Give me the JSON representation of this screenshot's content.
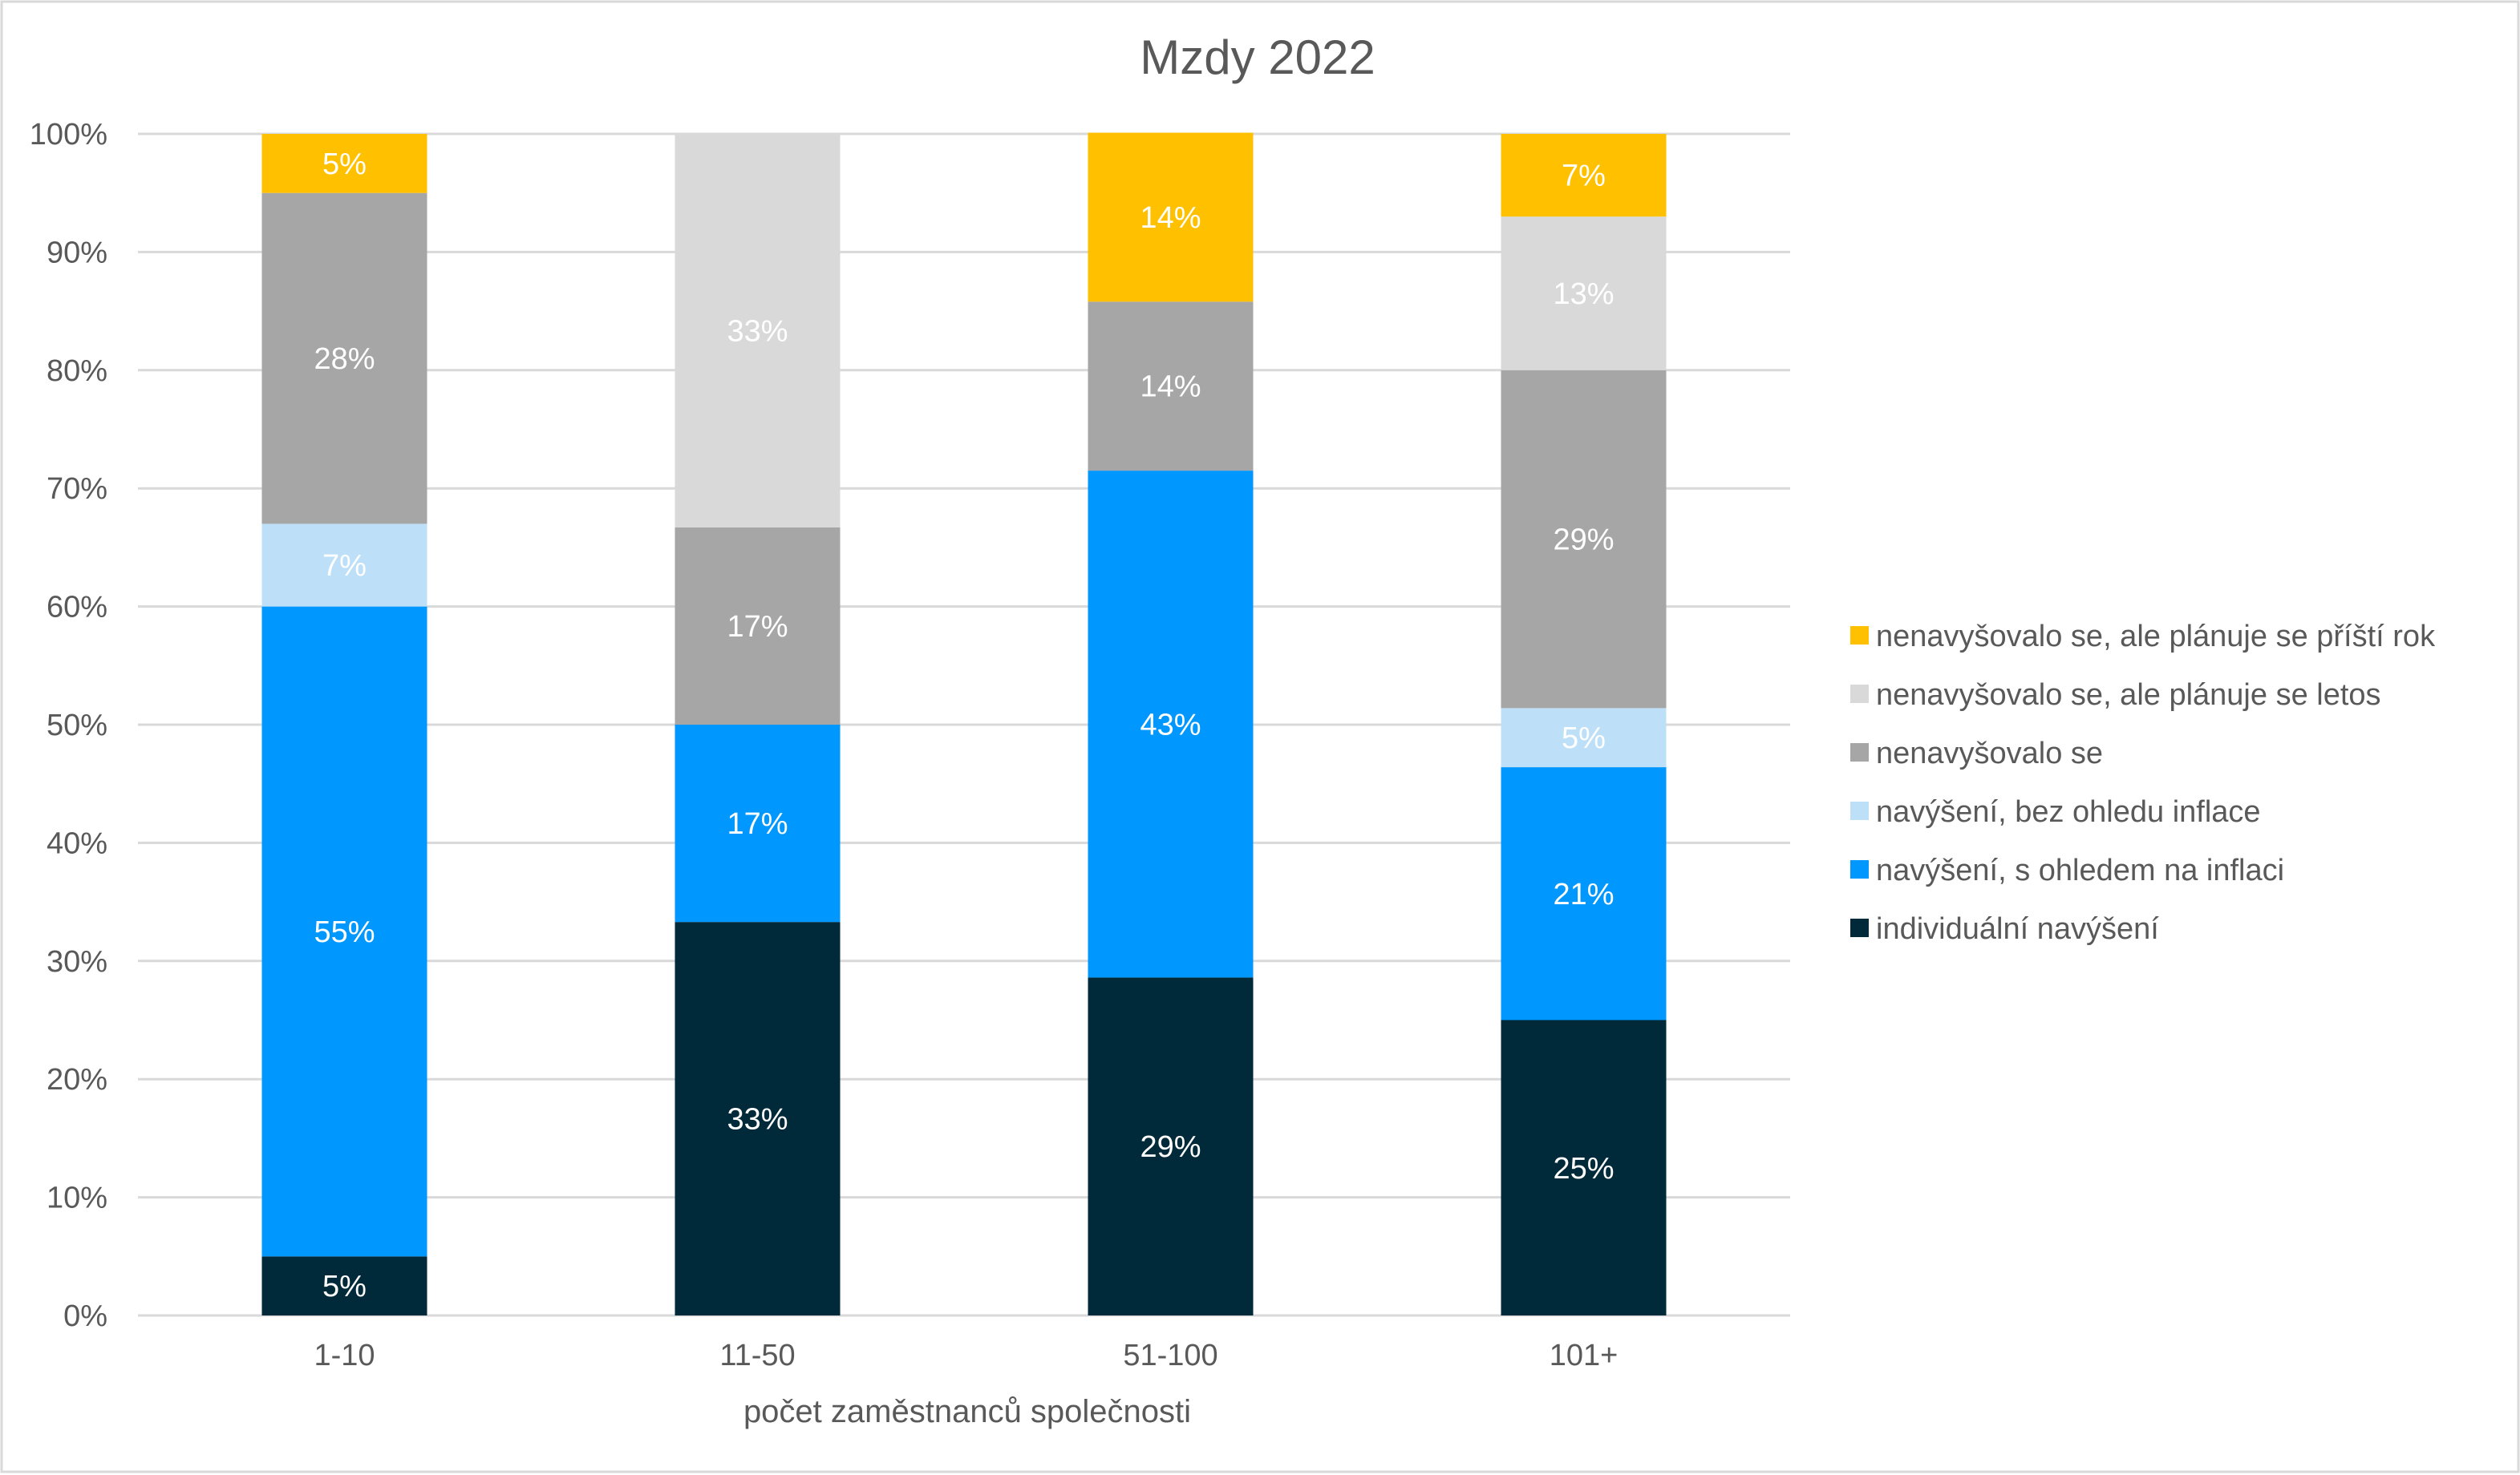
{
  "chart_data": {
    "type": "bar",
    "stacked": true,
    "percent_stacked": true,
    "title": "Mzdy 2022",
    "xlabel": "počet zaměstnanců společnosti",
    "ylabel": "",
    "categories": [
      "1-10",
      "11-50",
      "51-100",
      "101+"
    ],
    "ylim": [
      0,
      100
    ],
    "yticks": [
      "0%",
      "10%",
      "20%",
      "30%",
      "40%",
      "50%",
      "60%",
      "70%",
      "80%",
      "90%",
      "100%"
    ],
    "grid": true,
    "legend_position": "right",
    "series": [
      {
        "name": "individuální navýšení",
        "color": "#002a3a",
        "values": [
          5,
          33.3,
          28.6,
          25
        ],
        "labels": [
          "5%",
          "33%",
          "29%",
          "25%"
        ]
      },
      {
        "name": "navýšení, s ohledem na inflaci",
        "color": "#0097ff",
        "values": [
          55,
          16.7,
          42.9,
          21.4
        ],
        "labels": [
          "55%",
          "17%",
          "43%",
          "21%"
        ]
      },
      {
        "name": "navýšení, bez ohledu inflace",
        "color": "#bde0f8",
        "values": [
          7,
          0,
          0,
          5
        ],
        "labels": [
          "7%",
          "",
          "",
          "5%"
        ]
      },
      {
        "name": "nenavyšovalo se",
        "color": "#a6a6a6",
        "values": [
          28,
          16.7,
          14.3,
          28.6
        ],
        "labels": [
          "28%",
          "17%",
          "14%",
          "29%"
        ]
      },
      {
        "name": "nenavyšovalo se, ale plánuje se letos",
        "color": "#d9d9d9",
        "values": [
          0,
          33.3,
          0,
          13
        ],
        "labels": [
          "",
          "33%",
          "",
          "13%"
        ]
      },
      {
        "name": "nenavyšovalo se, ale plánuje se příští rok",
        "color": "#ffc000",
        "values": [
          5,
          0,
          14.3,
          7
        ],
        "labels": [
          "5%",
          "",
          "14%",
          "7%"
        ]
      }
    ]
  }
}
